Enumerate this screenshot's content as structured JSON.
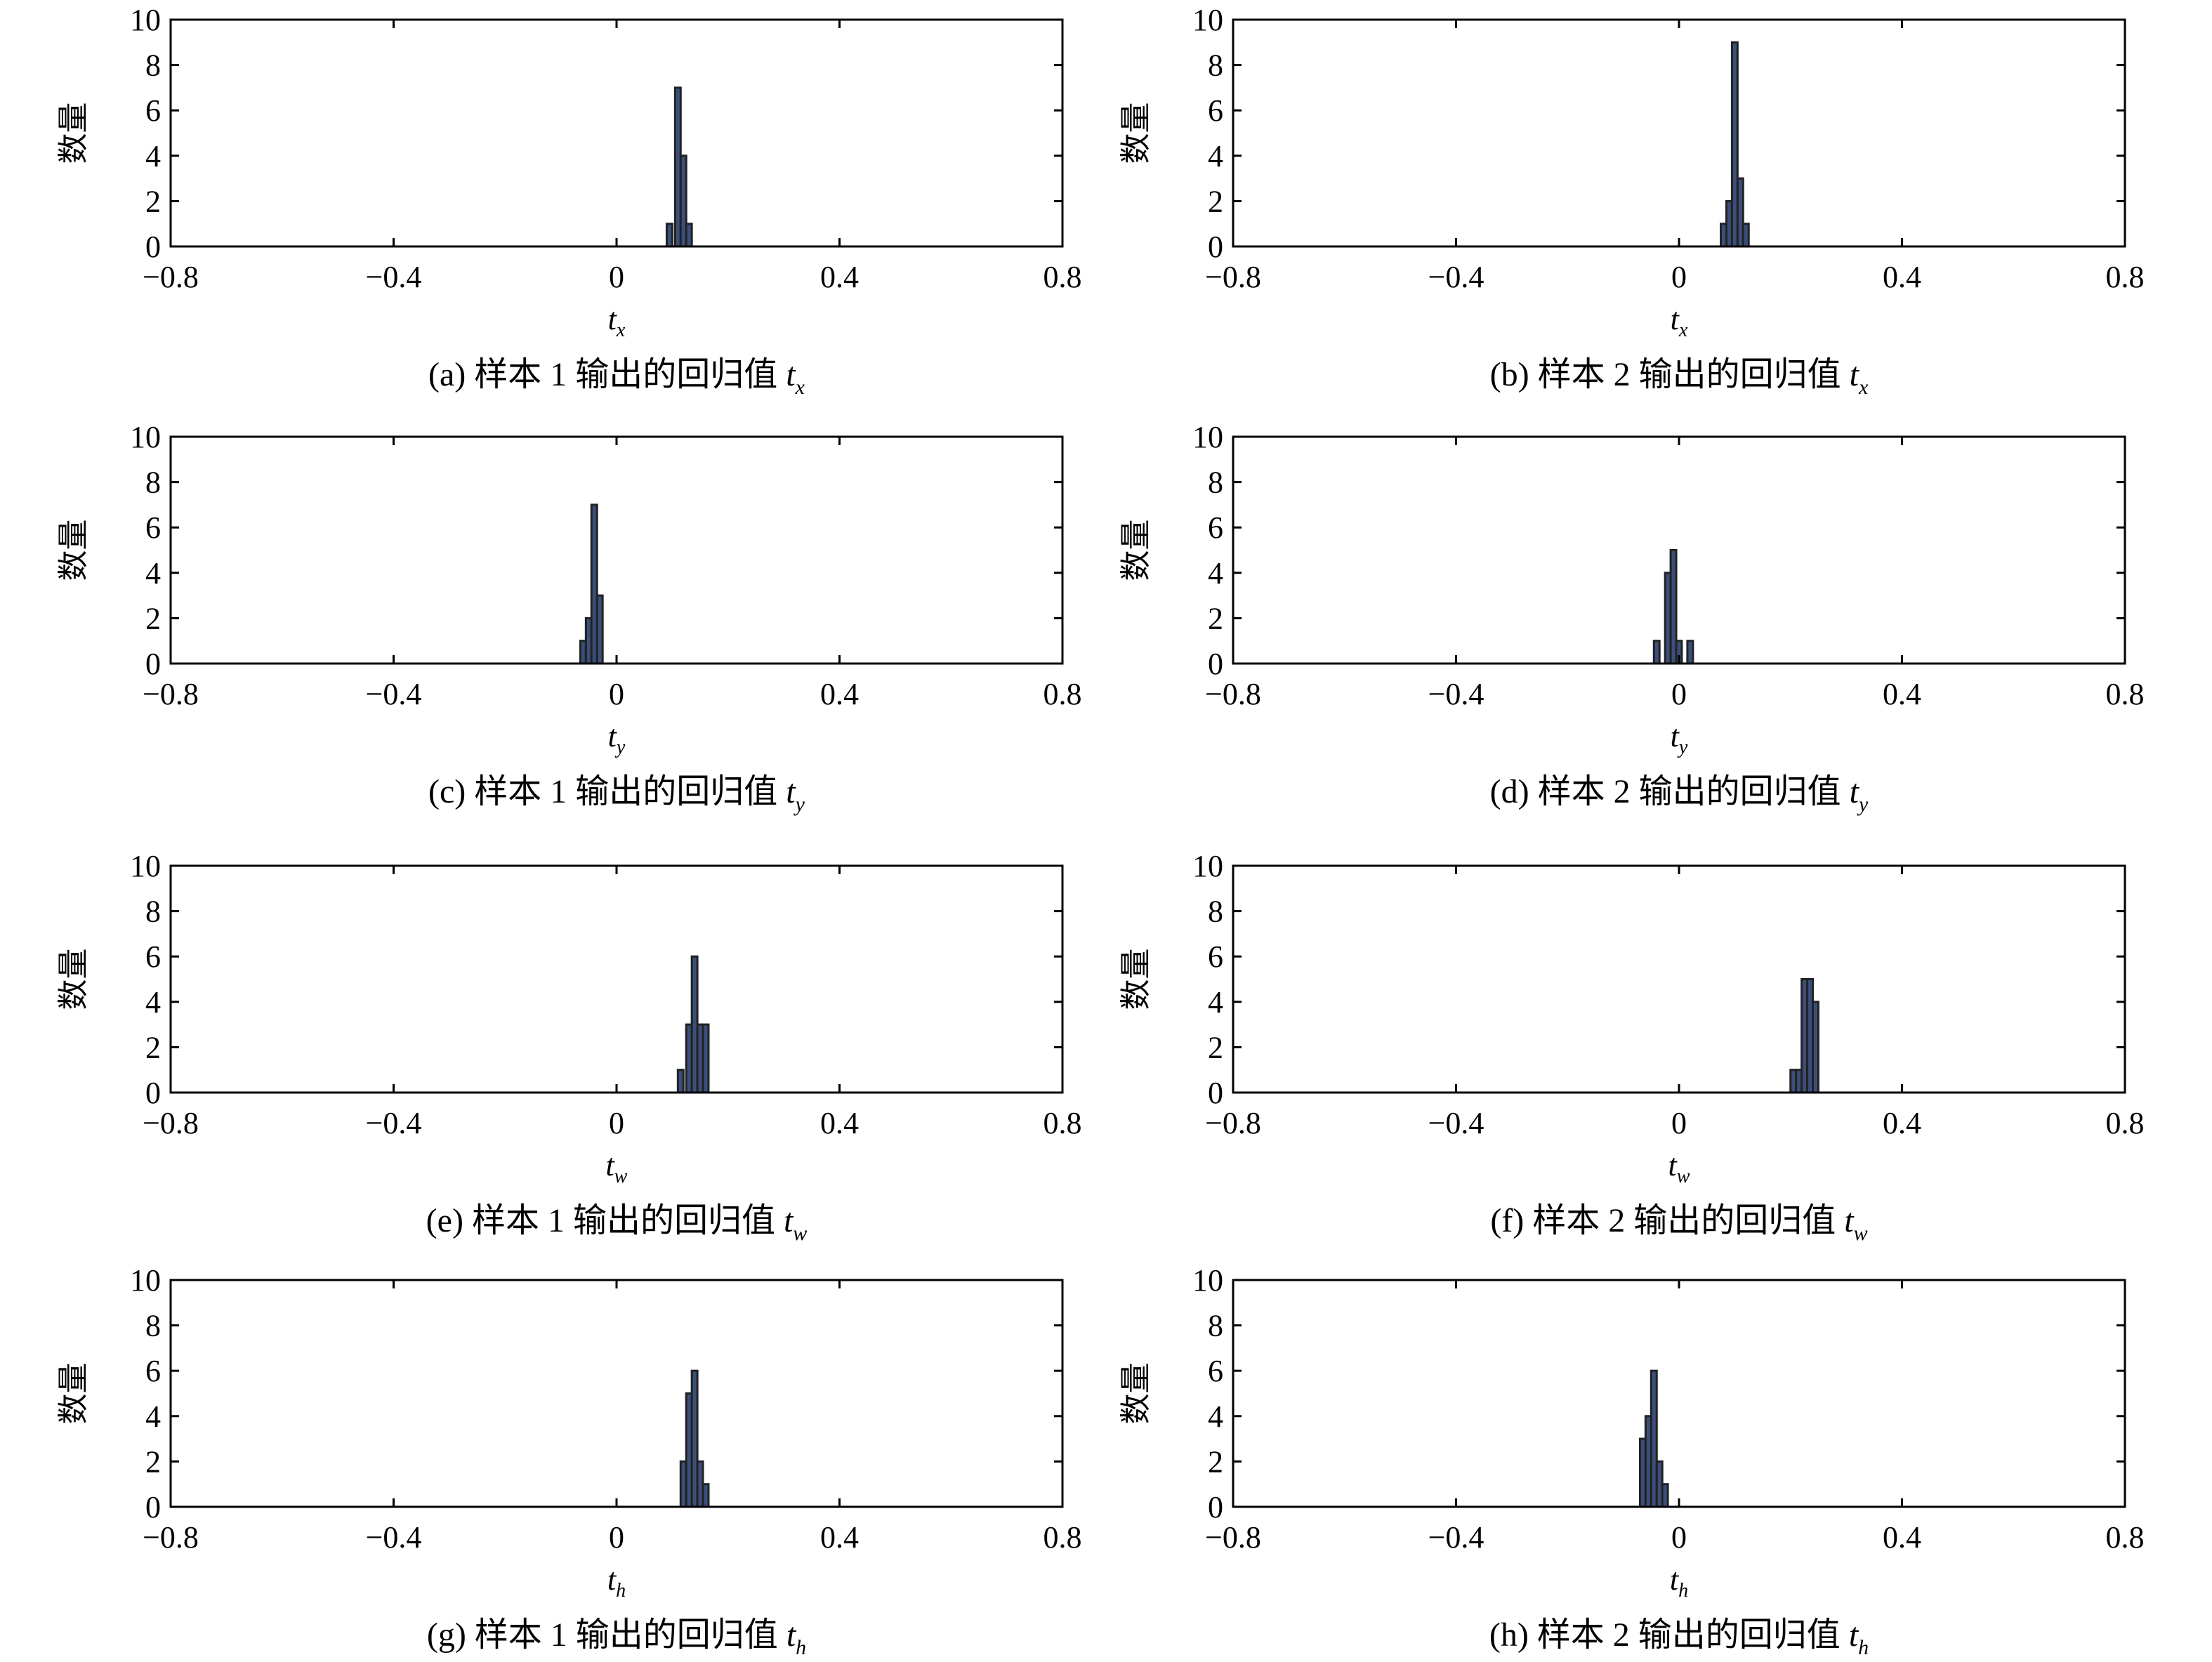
{
  "colors": {
    "bar_fill": "#3b4f7c",
    "bar_edge": "#222222",
    "axis": "#000000"
  },
  "chart_data": [
    {
      "type": "histogram",
      "panel": "a",
      "caption_prefix": "(a) 样本 1 输出的回归值 ",
      "caption_var": "t",
      "caption_sub": "x",
      "xlabel_var": "t",
      "xlabel_sub": "x",
      "ylabel": "数量",
      "xlim": [
        -0.8,
        0.8
      ],
      "ylim": [
        0,
        10
      ],
      "xticks": [
        "−0.8",
        "−0.4",
        "0",
        "0.4",
        "0.8"
      ],
      "yticks": [
        "0",
        "2",
        "4",
        "6",
        "8",
        "10"
      ],
      "bin_width": 0.01,
      "bins": [
        {
          "x": 0.095,
          "count": 1
        },
        {
          "x": 0.11,
          "count": 7
        },
        {
          "x": 0.12,
          "count": 4
        },
        {
          "x": 0.13,
          "count": 1
        }
      ]
    },
    {
      "type": "histogram",
      "panel": "b",
      "caption_prefix": "(b) 样本 2 输出的回归值 ",
      "caption_var": "t",
      "caption_sub": "x",
      "xlabel_var": "t",
      "xlabel_sub": "x",
      "ylabel": "数量",
      "xlim": [
        -0.8,
        0.8
      ],
      "ylim": [
        0,
        10
      ],
      "xticks": [
        "−0.8",
        "−0.4",
        "0",
        "0.4",
        "0.8"
      ],
      "yticks": [
        "0",
        "2",
        "4",
        "6",
        "8",
        "10"
      ],
      "bin_width": 0.01,
      "bins": [
        {
          "x": 0.08,
          "count": 1
        },
        {
          "x": 0.09,
          "count": 2
        },
        {
          "x": 0.1,
          "count": 9
        },
        {
          "x": 0.11,
          "count": 3
        },
        {
          "x": 0.12,
          "count": 1
        }
      ]
    },
    {
      "type": "histogram",
      "panel": "c",
      "caption_prefix": "(c) 样本 1 输出的回归值 ",
      "caption_var": "t",
      "caption_sub": "y",
      "xlabel_var": "t",
      "xlabel_sub": "y",
      "ylabel": "数量",
      "xlim": [
        -0.8,
        0.8
      ],
      "ylim": [
        0,
        10
      ],
      "xticks": [
        "−0.8",
        "−0.4",
        "0",
        "0.4",
        "0.8"
      ],
      "yticks": [
        "0",
        "2",
        "4",
        "6",
        "8",
        "10"
      ],
      "bin_width": 0.01,
      "bins": [
        {
          "x": -0.06,
          "count": 1
        },
        {
          "x": -0.05,
          "count": 2
        },
        {
          "x": -0.04,
          "count": 7
        },
        {
          "x": -0.03,
          "count": 3
        }
      ]
    },
    {
      "type": "histogram",
      "panel": "d",
      "caption_prefix": "(d) 样本 2 输出的回归值 ",
      "caption_var": "t",
      "caption_sub": "y",
      "xlabel_var": "t",
      "xlabel_sub": "y",
      "ylabel": "数量",
      "xlim": [
        -0.8,
        0.8
      ],
      "ylim": [
        0,
        10
      ],
      "xticks": [
        "−0.8",
        "−0.4",
        "0",
        "0.4",
        "0.8"
      ],
      "yticks": [
        "0",
        "2",
        "4",
        "6",
        "8",
        "10"
      ],
      "bin_width": 0.01,
      "bins": [
        {
          "x": -0.04,
          "count": 1
        },
        {
          "x": -0.02,
          "count": 4
        },
        {
          "x": -0.01,
          "count": 5
        },
        {
          "x": 0.0,
          "count": 1
        },
        {
          "x": 0.02,
          "count": 1
        }
      ]
    },
    {
      "type": "histogram",
      "panel": "e",
      "caption_prefix": "(e) 样本 1 输出的回归值 ",
      "caption_var": "t",
      "caption_sub": "w",
      "xlabel_var": "t",
      "xlabel_sub": "w",
      "ylabel": "数量",
      "xlim": [
        -0.8,
        0.8
      ],
      "ylim": [
        0,
        10
      ],
      "xticks": [
        "−0.8",
        "−0.4",
        "0",
        "0.4",
        "0.8"
      ],
      "yticks": [
        "0",
        "2",
        "4",
        "6",
        "8",
        "10"
      ],
      "bin_width": 0.01,
      "bins": [
        {
          "x": 0.115,
          "count": 1
        },
        {
          "x": 0.13,
          "count": 3
        },
        {
          "x": 0.14,
          "count": 6
        },
        {
          "x": 0.15,
          "count": 3
        },
        {
          "x": 0.16,
          "count": 3
        }
      ]
    },
    {
      "type": "histogram",
      "panel": "f",
      "caption_prefix": "(f) 样本 2 输出的回归值 ",
      "caption_var": "t",
      "caption_sub": "w",
      "xlabel_var": "t",
      "xlabel_sub": "w",
      "ylabel": "数量",
      "xlim": [
        -0.8,
        0.8
      ],
      "ylim": [
        0,
        10
      ],
      "xticks": [
        "−0.8",
        "−0.4",
        "0",
        "0.4",
        "0.8"
      ],
      "yticks": [
        "0",
        "2",
        "4",
        "6",
        "8",
        "10"
      ],
      "bin_width": 0.01,
      "bins": [
        {
          "x": 0.205,
          "count": 1
        },
        {
          "x": 0.215,
          "count": 1
        },
        {
          "x": 0.225,
          "count": 5
        },
        {
          "x": 0.235,
          "count": 5
        },
        {
          "x": 0.245,
          "count": 4
        }
      ]
    },
    {
      "type": "histogram",
      "panel": "g",
      "caption_prefix": "(g) 样本 1 输出的回归值 ",
      "caption_var": "t",
      "caption_sub": "h",
      "xlabel_var": "t",
      "xlabel_sub": "h",
      "ylabel": "数量",
      "xlim": [
        -0.8,
        0.8
      ],
      "ylim": [
        0,
        10
      ],
      "xticks": [
        "−0.8",
        "−0.4",
        "0",
        "0.4",
        "0.8"
      ],
      "yticks": [
        "0",
        "2",
        "4",
        "6",
        "8",
        "10"
      ],
      "bin_width": 0.01,
      "bins": [
        {
          "x": 0.12,
          "count": 2
        },
        {
          "x": 0.13,
          "count": 5
        },
        {
          "x": 0.14,
          "count": 6
        },
        {
          "x": 0.15,
          "count": 2
        },
        {
          "x": 0.16,
          "count": 1
        }
      ]
    },
    {
      "type": "histogram",
      "panel": "h",
      "caption_prefix": "(h) 样本 2 输出的回归值 ",
      "caption_var": "t",
      "caption_sub": "h",
      "xlabel_var": "t",
      "xlabel_sub": "h",
      "ylabel": "数量",
      "xlim": [
        -0.8,
        0.8
      ],
      "ylim": [
        0,
        10
      ],
      "xticks": [
        "−0.8",
        "−0.4",
        "0",
        "0.4",
        "0.8"
      ],
      "yticks": [
        "0",
        "2",
        "4",
        "6",
        "8",
        "10"
      ],
      "bin_width": 0.01,
      "bins": [
        {
          "x": -0.065,
          "count": 3
        },
        {
          "x": -0.055,
          "count": 4
        },
        {
          "x": -0.045,
          "count": 6
        },
        {
          "x": -0.035,
          "count": 2
        },
        {
          "x": -0.025,
          "count": 1
        }
      ]
    }
  ]
}
